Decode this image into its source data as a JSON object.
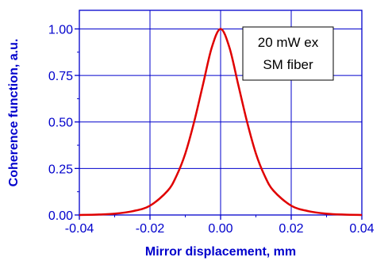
{
  "chart_data": {
    "type": "line",
    "xlabel": "Mirror displacement, mm",
    "ylabel": "Coherence function, a.u.",
    "xlim": [
      -0.04,
      0.04
    ],
    "ylim": [
      0.0,
      1.1
    ],
    "x_ticks": [
      "-0.04",
      "-0.02",
      "0.00",
      "0.02",
      "0.04"
    ],
    "y_ticks": [
      "0.00",
      "0.25",
      "0.50",
      "0.75",
      "1.00"
    ],
    "grid": true,
    "series": [
      {
        "color": "#e00000",
        "x": [
          -0.04,
          -0.035,
          -0.03,
          -0.025,
          -0.02,
          -0.015,
          -0.0125,
          -0.01,
          -0.0075,
          -0.005,
          -0.0025,
          0.0,
          0.0025,
          0.005,
          0.0075,
          0.01,
          0.0125,
          0.015,
          0.02,
          0.025,
          0.03,
          0.035,
          0.04
        ],
        "y": [
          0.0,
          0.002,
          0.007,
          0.02,
          0.05,
          0.13,
          0.21,
          0.33,
          0.5,
          0.7,
          0.9,
          1.0,
          0.9,
          0.7,
          0.5,
          0.33,
          0.21,
          0.13,
          0.05,
          0.02,
          0.007,
          0.002,
          0.0
        ]
      }
    ],
    "annotation": {
      "lines": [
        "20 mW ex",
        "SM fiber"
      ],
      "position": "top-right"
    }
  },
  "colors": {
    "axis": "#0000cc",
    "grid": "#0000cc",
    "curve": "#e00000"
  }
}
